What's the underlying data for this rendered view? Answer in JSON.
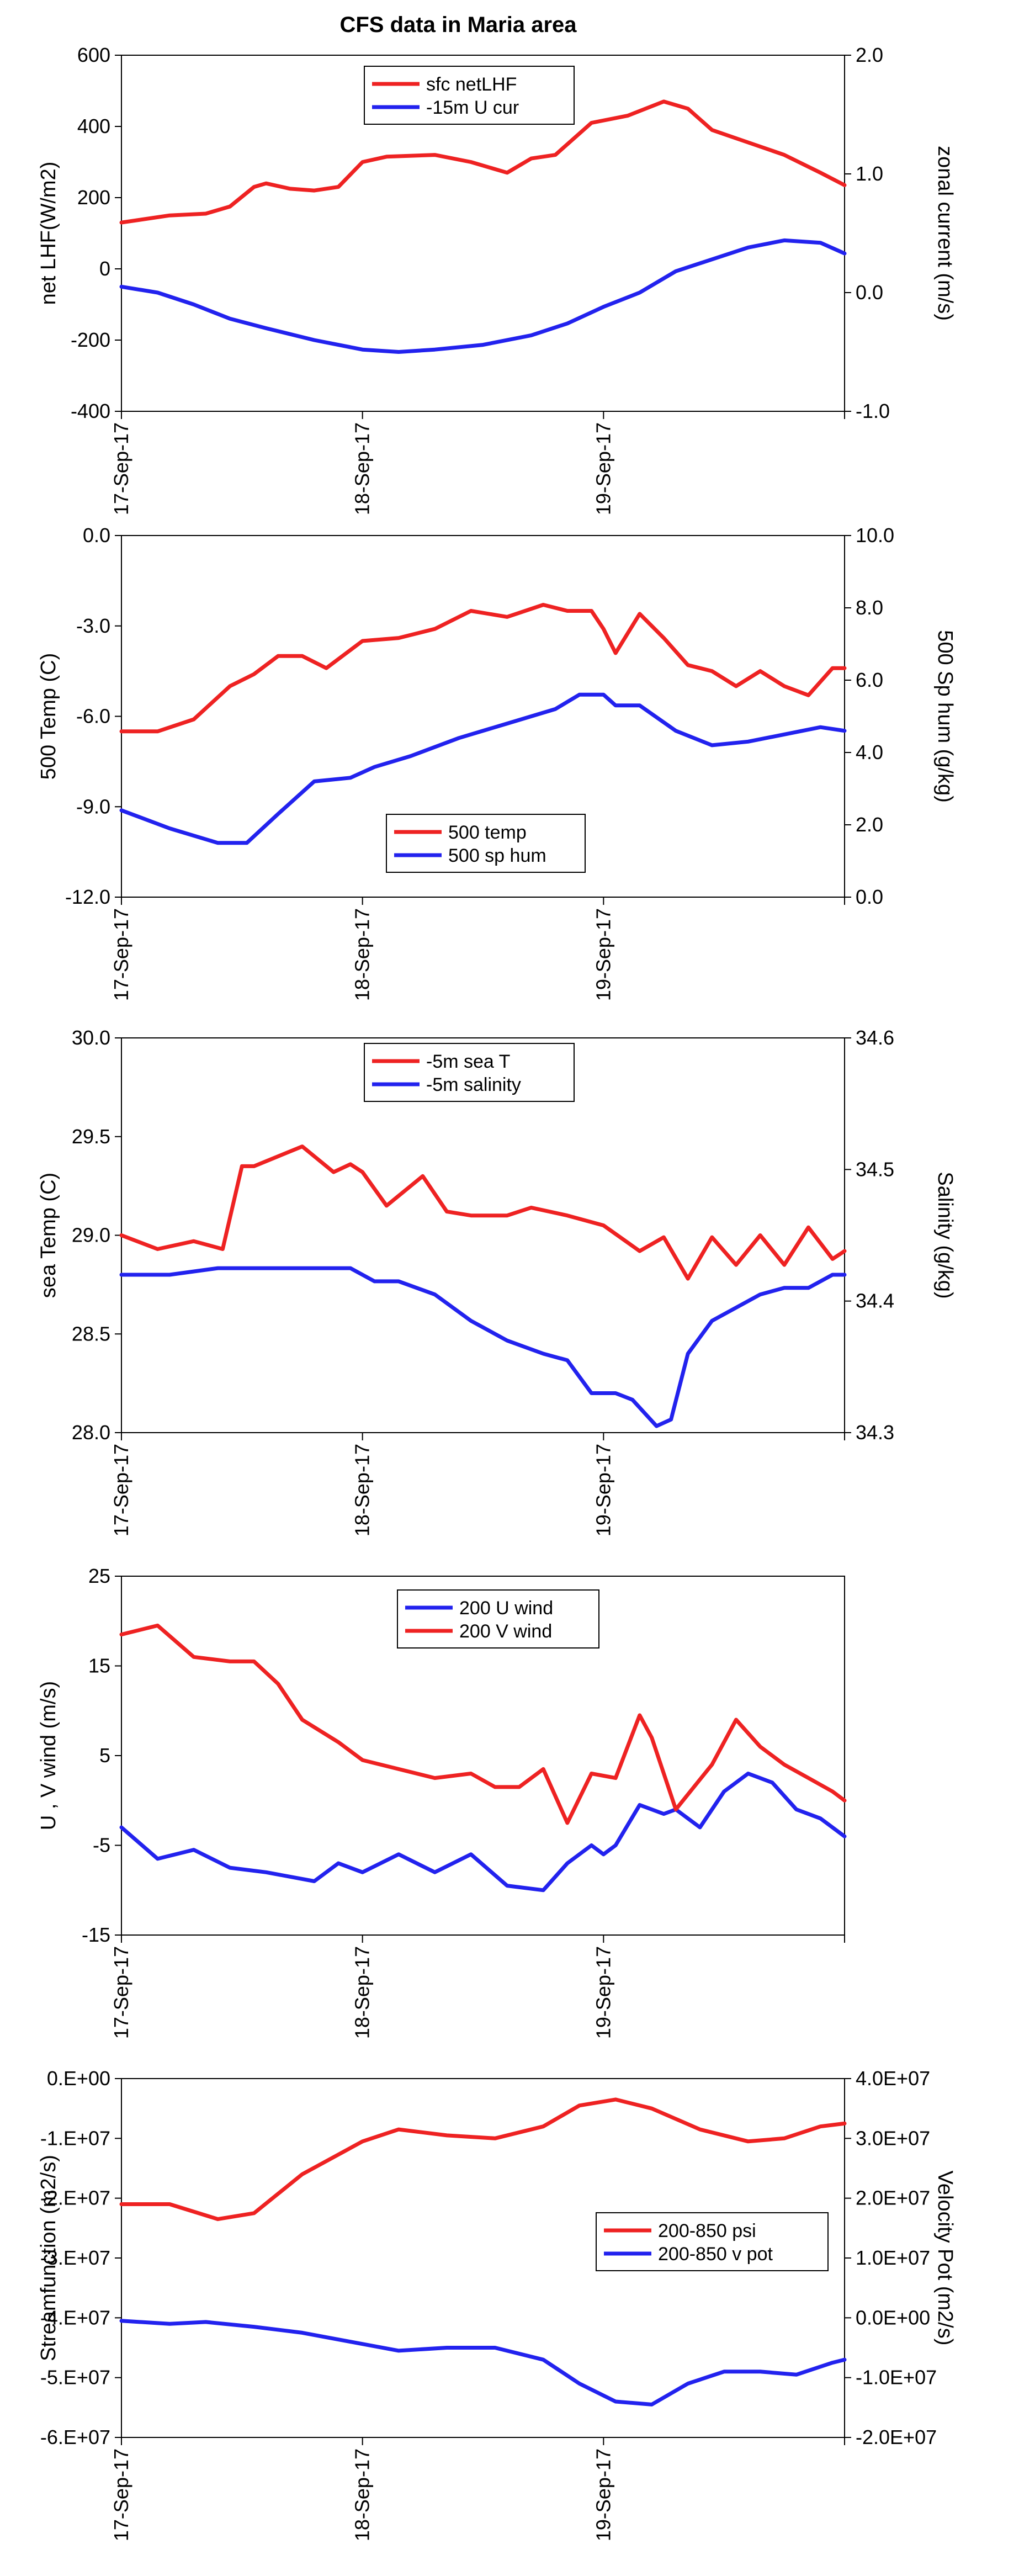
{
  "figure_title": "CFS data in Maria area",
  "colors": {
    "red": "#ee2222",
    "blue": "#2222ee",
    "axis": "#000000"
  },
  "chart_data": [
    {
      "type": "line",
      "x_ticks": [
        "17-Sep-17",
        "18-Sep-17",
        "19-Sep-17"
      ],
      "xlim": [
        0,
        3
      ],
      "ylabel": "net LHF(W/m2)",
      "ylim": [
        -400,
        600
      ],
      "yticks": [
        "600",
        "400",
        "200",
        "0",
        "-200",
        "-400"
      ],
      "y2label": "zonal current (m/s)",
      "y2lim": [
        -1.0,
        2.0
      ],
      "y2ticks": [
        "2.0",
        "1.0",
        "0.0",
        "-1.0"
      ],
      "legend_pos": "top-center",
      "series": [
        {
          "name": "sfc netLHF",
          "color": "red",
          "axis": "left",
          "x": [
            0,
            0.2,
            0.35,
            0.45,
            0.55,
            0.6,
            0.7,
            0.8,
            0.9,
            1.0,
            1.1,
            1.3,
            1.45,
            1.6,
            1.7,
            1.8,
            1.95,
            2.1,
            2.25,
            2.35,
            2.45,
            2.6,
            2.75,
            2.9,
            3.0
          ],
          "y": [
            130,
            150,
            155,
            175,
            230,
            240,
            225,
            220,
            230,
            300,
            315,
            320,
            300,
            270,
            310,
            320,
            410,
            430,
            470,
            450,
            390,
            355,
            320,
            270,
            235
          ]
        },
        {
          "name": "-15m U cur",
          "color": "blue",
          "axis": "right",
          "x": [
            0,
            0.15,
            0.3,
            0.45,
            0.6,
            0.8,
            1.0,
            1.15,
            1.3,
            1.5,
            1.7,
            1.85,
            2.0,
            2.15,
            2.3,
            2.45,
            2.6,
            2.75,
            2.9,
            3.0
          ],
          "y": [
            0.05,
            0.0,
            -0.1,
            -0.22,
            -0.3,
            -0.4,
            -0.48,
            -0.5,
            -0.48,
            -0.44,
            -0.36,
            -0.26,
            -0.12,
            0.0,
            0.18,
            0.28,
            0.38,
            0.44,
            0.42,
            0.33
          ]
        }
      ]
    },
    {
      "type": "line",
      "x_ticks": [
        "17-Sep-17",
        "18-Sep-17",
        "19-Sep-17"
      ],
      "xlim": [
        0,
        3
      ],
      "ylabel": "500 Temp (C)",
      "ylim": [
        -12,
        0
      ],
      "yticks": [
        "0.0",
        "-3.0",
        "-6.0",
        "-9.0",
        "-12.0"
      ],
      "y2label": "500 Sp hum (g/kg)",
      "y2lim": [
        0,
        10
      ],
      "y2ticks": [
        "10.0",
        "8.0",
        "6.0",
        "4.0",
        "2.0",
        "0.0"
      ],
      "legend_pos": "bottom-center",
      "series": [
        {
          "name": "500 temp",
          "color": "red",
          "axis": "left",
          "x": [
            0,
            0.15,
            0.3,
            0.45,
            0.55,
            0.65,
            0.75,
            0.85,
            0.95,
            1.0,
            1.15,
            1.3,
            1.45,
            1.6,
            1.75,
            1.85,
            1.95,
            2.0,
            2.05,
            2.15,
            2.25,
            2.35,
            2.45,
            2.55,
            2.65,
            2.75,
            2.85,
            2.95,
            3.0
          ],
          "y": [
            -6.5,
            -6.5,
            -6.1,
            -5.0,
            -4.6,
            -4.0,
            -4.0,
            -4.4,
            -3.8,
            -3.5,
            -3.4,
            -3.1,
            -2.5,
            -2.7,
            -2.3,
            -2.5,
            -2.5,
            -3.1,
            -3.9,
            -2.6,
            -3.4,
            -4.3,
            -4.5,
            -5.0,
            -4.5,
            -5.0,
            -5.3,
            -4.4,
            -4.4
          ]
        },
        {
          "name": "500 sp hum",
          "color": "blue",
          "axis": "right",
          "x": [
            0,
            0.2,
            0.4,
            0.52,
            0.65,
            0.8,
            0.95,
            1.05,
            1.2,
            1.4,
            1.6,
            1.8,
            1.9,
            2.0,
            2.05,
            2.15,
            2.3,
            2.45,
            2.6,
            2.75,
            2.9,
            3.0
          ],
          "y": [
            2.4,
            1.9,
            1.5,
            1.5,
            2.3,
            3.2,
            3.3,
            3.6,
            3.9,
            4.4,
            4.8,
            5.2,
            5.6,
            5.6,
            5.3,
            5.3,
            4.6,
            4.2,
            4.3,
            4.5,
            4.7,
            4.6
          ]
        }
      ]
    },
    {
      "type": "line",
      "x_ticks": [
        "17-Sep-17",
        "18-Sep-17",
        "19-Sep-17"
      ],
      "xlim": [
        0,
        3
      ],
      "ylabel": "sea Temp (C)",
      "ylim": [
        28.0,
        30.0
      ],
      "yticks": [
        "30.0",
        "29.5",
        "29.0",
        "28.5",
        "28.0"
      ],
      "y2label": "Salinity (g/kg)",
      "y2lim": [
        34.3,
        34.6
      ],
      "y2ticks": [
        "34.6",
        "34.5",
        "34.4",
        "34.3"
      ],
      "legend_pos": "top-center",
      "series": [
        {
          "name": "-5m sea T",
          "color": "red",
          "axis": "left",
          "x": [
            0,
            0.15,
            0.3,
            0.42,
            0.5,
            0.55,
            0.65,
            0.75,
            0.88,
            0.95,
            1.0,
            1.1,
            1.15,
            1.25,
            1.35,
            1.45,
            1.6,
            1.7,
            1.85,
            2.0,
            2.15,
            2.25,
            2.35,
            2.45,
            2.55,
            2.65,
            2.75,
            2.85,
            2.95,
            3.0
          ],
          "y": [
            29.0,
            28.93,
            28.97,
            28.93,
            29.35,
            29.35,
            29.4,
            29.45,
            29.32,
            29.36,
            29.32,
            29.15,
            29.2,
            29.3,
            29.12,
            29.1,
            29.1,
            29.14,
            29.1,
            29.05,
            28.92,
            28.99,
            28.78,
            28.99,
            28.85,
            29.0,
            28.85,
            29.04,
            28.88,
            28.92
          ]
        },
        {
          "name": "-5m salinity",
          "color": "blue",
          "axis": "right",
          "x": [
            0,
            0.2,
            0.4,
            0.6,
            0.8,
            0.95,
            1.05,
            1.15,
            1.3,
            1.45,
            1.6,
            1.75,
            1.85,
            1.95,
            2.05,
            2.12,
            2.22,
            2.28,
            2.35,
            2.45,
            2.55,
            2.65,
            2.75,
            2.85,
            2.95,
            3.0
          ],
          "y": [
            34.42,
            34.42,
            34.425,
            34.425,
            34.425,
            34.425,
            34.415,
            34.415,
            34.405,
            34.385,
            34.37,
            34.36,
            34.355,
            34.33,
            34.33,
            34.325,
            34.305,
            34.31,
            34.36,
            34.385,
            34.395,
            34.405,
            34.41,
            34.41,
            34.42,
            34.42
          ]
        }
      ]
    },
    {
      "type": "line",
      "x_ticks": [
        "17-Sep-17",
        "18-Sep-17",
        "19-Sep-17"
      ],
      "xlim": [
        0,
        3
      ],
      "ylabel": "U , V wind (m/s)",
      "ylim": [
        -15,
        25
      ],
      "yticks": [
        "25",
        "15",
        "5",
        "-5",
        "-15"
      ],
      "legend_pos": "top-center",
      "series": [
        {
          "name": "200 U wind",
          "color": "blue",
          "axis": "left",
          "x": [
            0,
            0.15,
            0.3,
            0.45,
            0.6,
            0.8,
            0.9,
            1.0,
            1.15,
            1.3,
            1.45,
            1.6,
            1.75,
            1.85,
            1.95,
            2.0,
            2.05,
            2.15,
            2.25,
            2.3,
            2.4,
            2.5,
            2.6,
            2.7,
            2.8,
            2.9,
            3.0
          ],
          "y": [
            -3,
            -6.5,
            -5.5,
            -7.5,
            -8,
            -9,
            -7,
            -8,
            -6,
            -8,
            -6,
            -9.5,
            -10,
            -7,
            -5,
            -6,
            -5,
            -0.5,
            -1.5,
            -1,
            -3,
            1,
            3,
            2,
            -1,
            -2,
            -4
          ]
        },
        {
          "name": "200 V wind",
          "color": "red",
          "axis": "left",
          "x": [
            0,
            0.15,
            0.3,
            0.45,
            0.55,
            0.65,
            0.75,
            0.9,
            1.0,
            1.15,
            1.3,
            1.45,
            1.55,
            1.65,
            1.75,
            1.85,
            1.95,
            2.05,
            2.15,
            2.2,
            2.3,
            2.45,
            2.55,
            2.65,
            2.75,
            2.85,
            2.95,
            3.0
          ],
          "y": [
            18.5,
            19.5,
            16,
            15.5,
            15.5,
            13,
            9,
            6.5,
            4.5,
            3.5,
            2.5,
            3,
            1.5,
            1.5,
            3.5,
            -2.5,
            3,
            2.5,
            9.5,
            7,
            -1,
            4,
            9,
            6,
            4,
            2.5,
            1,
            0
          ]
        }
      ]
    },
    {
      "type": "line",
      "x_ticks": [
        "17-Sep-17",
        "18-Sep-17",
        "19-Sep-17"
      ],
      "xlim": [
        0,
        3
      ],
      "ylabel": "Streamfunction (m2/s)",
      "ylim": [
        -60000000,
        0
      ],
      "yticks": [
        "0.E+00",
        "-1.E+07",
        "-2.E+07",
        "-3.E+07",
        "-4.E+07",
        "-5.E+07",
        "-6.E+07"
      ],
      "y2label": "Velocity Pot (m2/s)",
      "y2lim": [
        -20000000,
        40000000
      ],
      "y2ticks": [
        "4.0E+07",
        "3.0E+07",
        "2.0E+07",
        "1.0E+07",
        "0.0E+00",
        "-1.0E+07",
        "-2.0E+07"
      ],
      "legend_pos": "center-right",
      "series": [
        {
          "name": "200-850 psi",
          "color": "red",
          "axis": "left",
          "x": [
            0,
            0.2,
            0.4,
            0.55,
            0.75,
            1.0,
            1.15,
            1.35,
            1.55,
            1.75,
            1.9,
            2.05,
            2.2,
            2.4,
            2.6,
            2.75,
            2.9,
            3.0
          ],
          "y": [
            -21000000,
            -21000000,
            -23500000,
            -22500000,
            -16000000,
            -10500000,
            -8500000,
            -9500000,
            -10000000,
            -8000000,
            -4500000,
            -3500000,
            -5000000,
            -8500000,
            -10500000,
            -10000000,
            -8000000,
            -7500000
          ]
        },
        {
          "name": "200-850 v pot",
          "color": "blue",
          "axis": "right",
          "x": [
            0,
            0.2,
            0.35,
            0.55,
            0.75,
            0.95,
            1.15,
            1.35,
            1.55,
            1.75,
            1.9,
            2.05,
            2.2,
            2.35,
            2.5,
            2.65,
            2.8,
            2.95,
            3.0
          ],
          "y": [
            -500000,
            -1000000,
            -700000,
            -1500000,
            -2500000,
            -4000000,
            -5500000,
            -5000000,
            -5000000,
            -7000000,
            -11000000,
            -14000000,
            -14500000,
            -11000000,
            -9000000,
            -9000000,
            -9500000,
            -7500000,
            -7000000
          ]
        }
      ]
    }
  ]
}
